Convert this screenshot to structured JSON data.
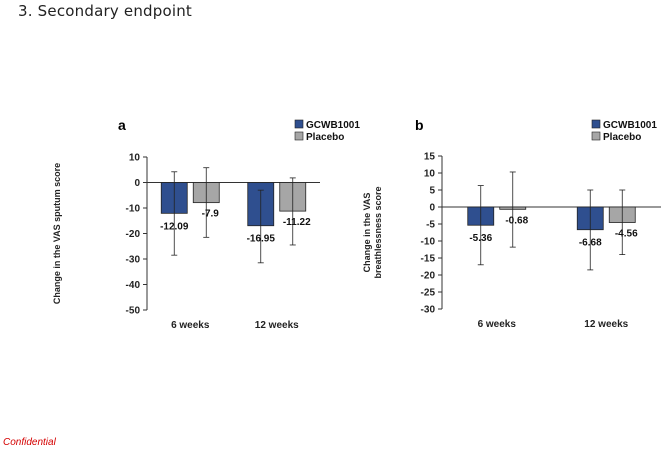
{
  "page": {
    "heading": "3. Secondary endpoint",
    "footer": "Confidential"
  },
  "colors": {
    "series_1": "#2f4f8f",
    "series_2": "#a6a6a6",
    "footer": "#d40000"
  },
  "chart_data": [
    {
      "type": "bar",
      "panel_label": "a",
      "ylabel": "Change in the VAS sputum score",
      "ylim": [
        -50,
        10
      ],
      "yticks": [
        10,
        0,
        -10,
        -20,
        -30,
        -40,
        -50
      ],
      "categories": [
        "6 weeks",
        "12 weeks"
      ],
      "series": [
        {
          "name": "GCWB1001",
          "values": [
            -12.09,
            -16.95
          ],
          "err_low": [
            -28.5,
            -31.5
          ],
          "err_high": [
            4.2,
            -3.0
          ],
          "labels": [
            "-12.09",
            "-16.95"
          ]
        },
        {
          "name": "Placebo",
          "values": [
            -7.9,
            -11.22
          ],
          "err_low": [
            -21.5,
            -24.5
          ],
          "err_high": [
            5.8,
            1.8
          ],
          "labels": [
            "-7.9",
            "-11.22"
          ]
        }
      ],
      "legend": "top-right"
    },
    {
      "type": "bar",
      "panel_label": "b",
      "ylabel": "Change in the VAS breathlessness score",
      "ylim": [
        -30,
        15
      ],
      "yticks": [
        15,
        10,
        5,
        0,
        -5,
        -10,
        -15,
        -20,
        -25,
        -30
      ],
      "categories": [
        "6 weeks",
        "12 weeks"
      ],
      "series": [
        {
          "name": "GCWB1001",
          "values": [
            -5.36,
            -6.68
          ],
          "err_low": [
            -17.0,
            -18.5
          ],
          "err_high": [
            6.3,
            5.0
          ],
          "labels": [
            "-5.36",
            "-6.68"
          ]
        },
        {
          "name": "Placebo",
          "values": [
            -0.68,
            -4.56
          ],
          "err_low": [
            -11.8,
            -14.0
          ],
          "err_high": [
            10.3,
            5.0
          ],
          "labels": [
            "-0.68",
            "-4.56"
          ]
        }
      ],
      "legend": "top-right"
    }
  ]
}
